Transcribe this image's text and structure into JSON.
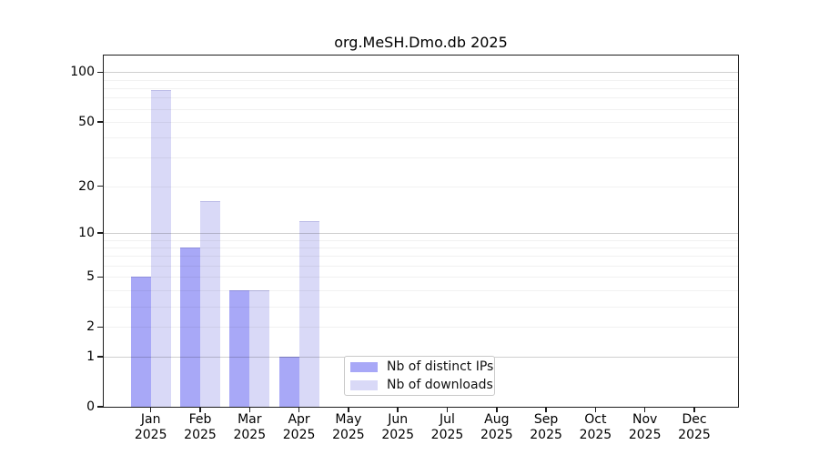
{
  "figure": {
    "title": "org.MeSH.Dmo.db 2025"
  },
  "legend": {
    "items": [
      {
        "label": "Nb of distinct IPs",
        "color": "#a8a8f7"
      },
      {
        "label": "Nb of downloads",
        "color": "#d9d9f7"
      }
    ]
  },
  "chart_data": {
    "type": "bar",
    "title": "org.MeSH.Dmo.db 2025",
    "year": "2025",
    "categories": [
      "Jan",
      "Feb",
      "Mar",
      "Apr",
      "May",
      "Jun",
      "Jul",
      "Aug",
      "Sep",
      "Oct",
      "Nov",
      "Dec"
    ],
    "series": [
      {
        "name": "Nb of distinct IPs",
        "color": "#a8a8f7",
        "values": [
          5,
          8,
          4,
          1,
          0,
          0,
          0,
          0,
          0,
          0,
          0,
          0
        ]
      },
      {
        "name": "Nb of downloads",
        "color": "#d9d9f7",
        "values": [
          78,
          16,
          4,
          12,
          0,
          0,
          0,
          0,
          0,
          0,
          0,
          0
        ]
      }
    ],
    "y_scale": "log10(1+y)",
    "ylim": [
      0,
      127
    ],
    "y_tick_values": [
      0,
      1,
      2,
      5,
      10,
      20,
      50,
      100
    ],
    "y_major_grid_values": [
      1,
      10,
      100
    ],
    "y_minor_grid_values": [
      2,
      3,
      4,
      5,
      6,
      7,
      8,
      9,
      20,
      30,
      40,
      50,
      60,
      70,
      80,
      90
    ],
    "grid": true,
    "legend_position": "lower center"
  }
}
